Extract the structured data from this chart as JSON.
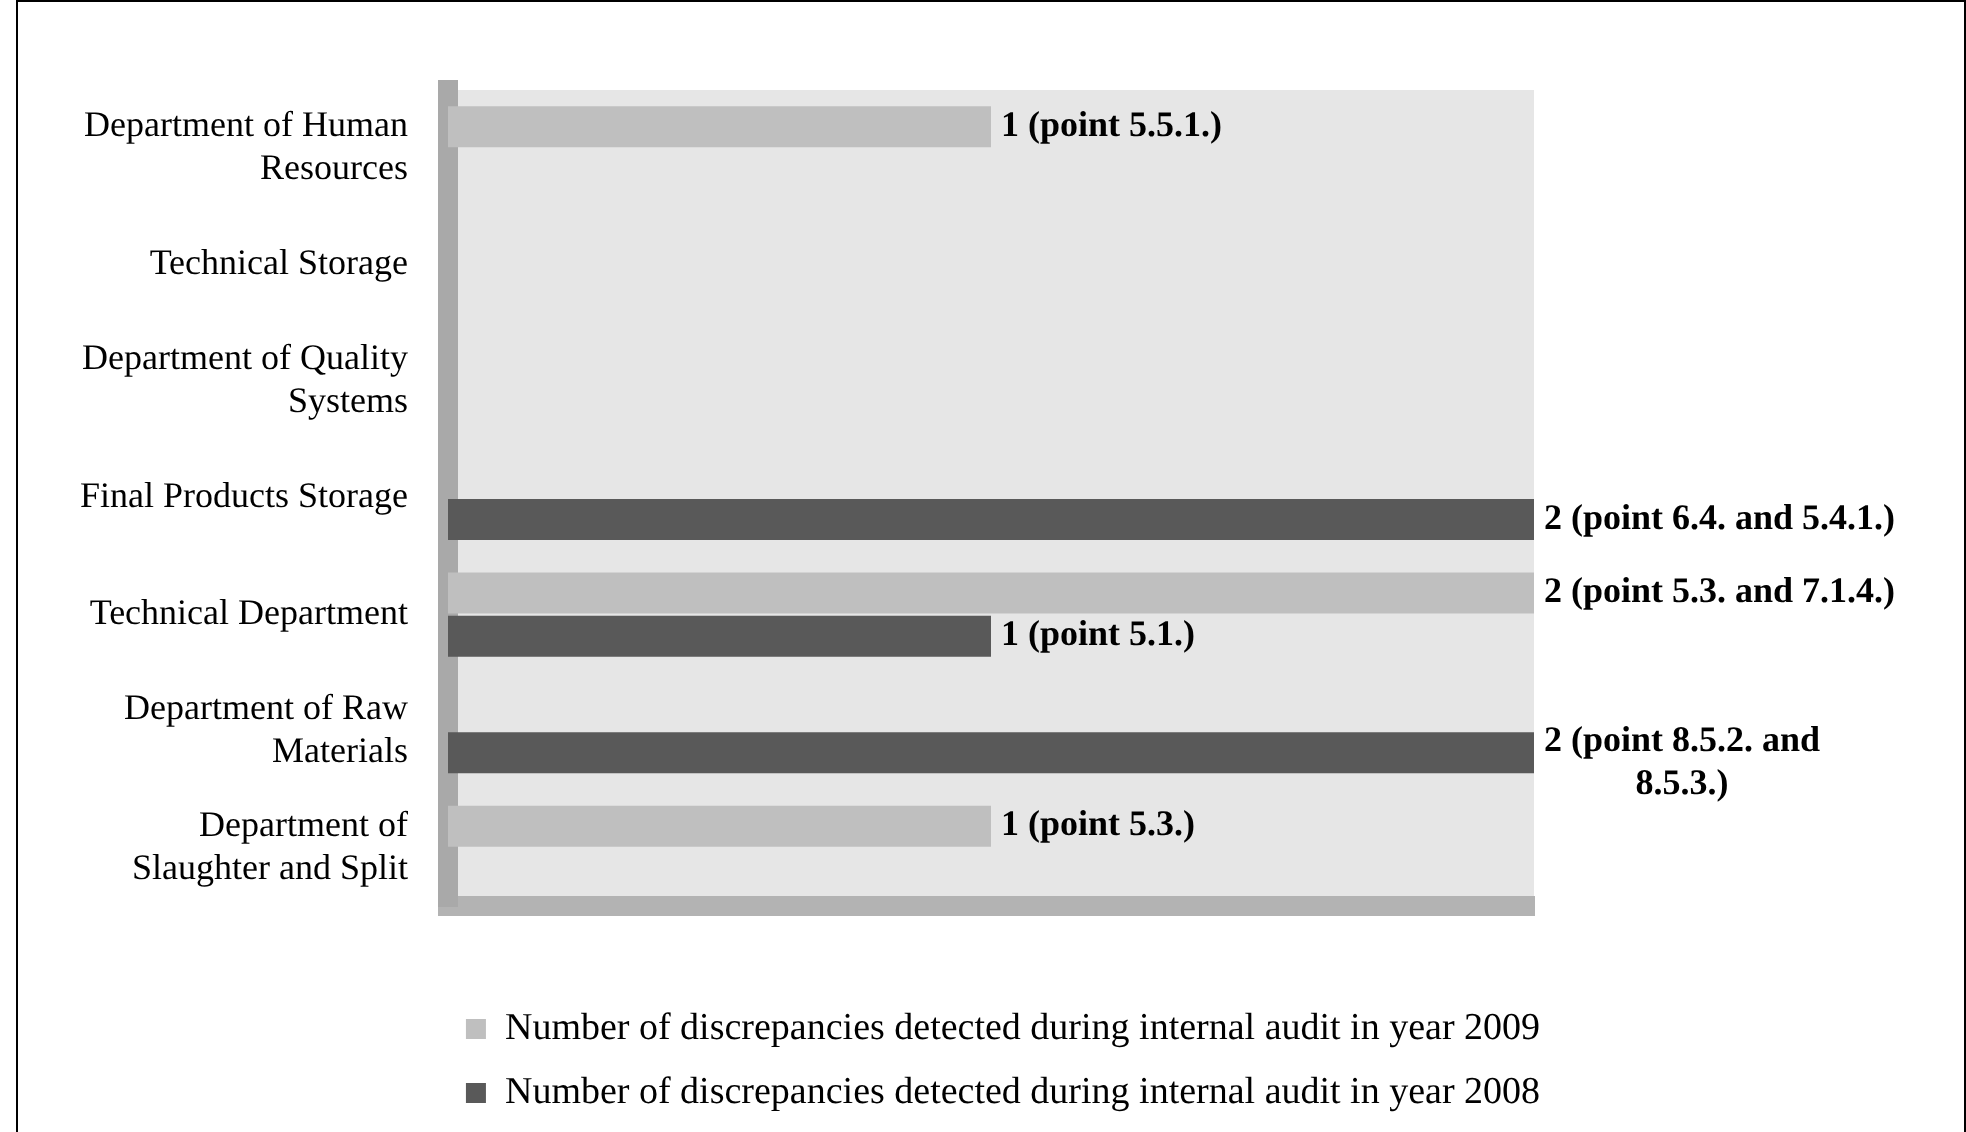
{
  "chart_data": {
    "type": "bar",
    "orientation": "horizontal",
    "categories": [
      "Department of Human Resources",
      "Technical Storage",
      "Department of Quality Systems",
      "Final Products Storage",
      "Technical Department",
      "Department of Raw Materials",
      "Department of Slaughter and Split"
    ],
    "series": [
      {
        "name": "Number of discrepancies detected during internal audit in year 2009",
        "color": "#bfbfbf",
        "values": [
          1,
          0,
          0,
          0,
          2,
          0,
          1
        ],
        "value_labels": [
          "1 (point 5.5.1.)",
          null,
          null,
          null,
          "2 (point 5.3. and 7.1.4.)",
          null,
          "1 (point 5.3.)"
        ]
      },
      {
        "name": "Number of discrepancies detected during internal audit in year 2008",
        "color": "#595959",
        "values": [
          0,
          0,
          0,
          2,
          1,
          2,
          0
        ],
        "value_labels": [
          null,
          null,
          null,
          "2 (point 6.4. and 5.4.1.)",
          "1 (point 5.1.)",
          "2 (point 8.5.2. and 8.5.3.)",
          null
        ]
      }
    ],
    "xlim": [
      0,
      2
    ],
    "tick_labels": "y",
    "legend": "bottom"
  }
}
